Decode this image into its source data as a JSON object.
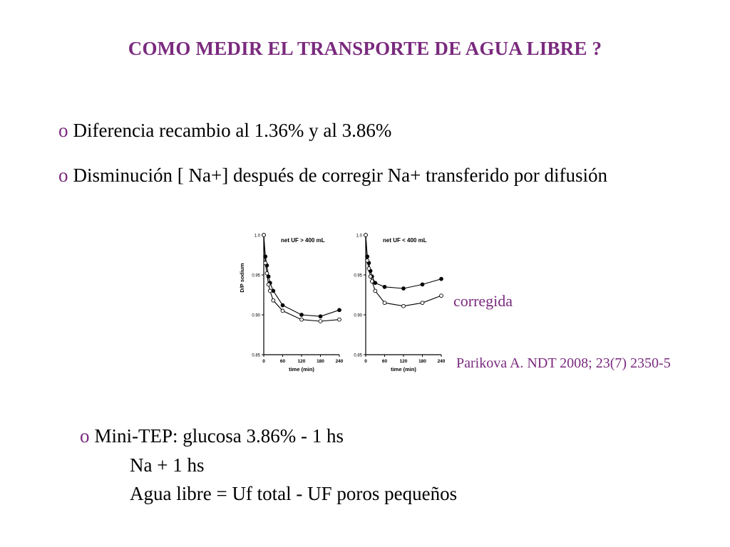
{
  "slide": {
    "title": "COMO MEDIR EL TRANSPORTE DE AGUA LIBRE ?",
    "bullet_marker": "o",
    "bullet1": "Diferencia recambio al 1.36% y al 3.86%",
    "bullet2": "Disminución [ Na+] después de corregir Na+ transferido por difusión",
    "annotation": "corregida",
    "citation": "Parikova A. NDT 2008; 23(7) 2350-5",
    "bullet3": "Mini-TEP: glucosa 3.86% - 1 hs",
    "line3": "Na + 1 hs",
    "line4": "Agua libre = Uf total  - UF poros pequeños",
    "colors": {
      "accent": "#7a2a7e",
      "text": "#000000"
    }
  },
  "chart_data": [
    {
      "type": "line",
      "title": "net UF > 400 mL",
      "xlabel": "time (min)",
      "ylabel": "D/P sodium",
      "xlim": [
        0,
        240
      ],
      "ylim": [
        0.85,
        1.0
      ],
      "xticks": [
        "0",
        "60",
        "120",
        "180",
        "240"
      ],
      "yticks": [
        "0.85",
        "0.90",
        "0.95",
        "1.0"
      ],
      "series": [
        {
          "marker": "filled",
          "x": [
            0,
            5,
            10,
            15,
            20,
            30,
            60,
            120,
            180,
            240
          ],
          "y": [
            1.0,
            0.973,
            0.962,
            0.948,
            0.94,
            0.93,
            0.912,
            0.9,
            0.898,
            0.906
          ]
        },
        {
          "marker": "open",
          "x": [
            0,
            5,
            10,
            15,
            20,
            30,
            60,
            120,
            180,
            240
          ],
          "y": [
            1.0,
            0.965,
            0.952,
            0.938,
            0.93,
            0.918,
            0.905,
            0.894,
            0.892,
            0.894
          ]
        }
      ]
    },
    {
      "type": "line",
      "title": "net UF < 400 mL",
      "xlabel": "time (min)",
      "ylabel": "",
      "xlim": [
        0,
        240
      ],
      "ylim": [
        0.85,
        1.0
      ],
      "xticks": [
        "0",
        "60",
        "120",
        "180",
        "240"
      ],
      "yticks": [
        "0.85",
        "0.90",
        "0.95",
        "1.0"
      ],
      "series": [
        {
          "marker": "filled",
          "x": [
            0,
            5,
            10,
            15,
            20,
            30,
            60,
            120,
            180,
            240
          ],
          "y": [
            1.0,
            0.973,
            0.965,
            0.955,
            0.948,
            0.94,
            0.935,
            0.933,
            0.938,
            0.945
          ]
        },
        {
          "marker": "open",
          "x": [
            0,
            5,
            10,
            15,
            20,
            30,
            60,
            120,
            180,
            240
          ],
          "y": [
            1.0,
            0.968,
            0.958,
            0.948,
            0.942,
            0.93,
            0.915,
            0.911,
            0.915,
            0.924
          ]
        }
      ]
    }
  ]
}
